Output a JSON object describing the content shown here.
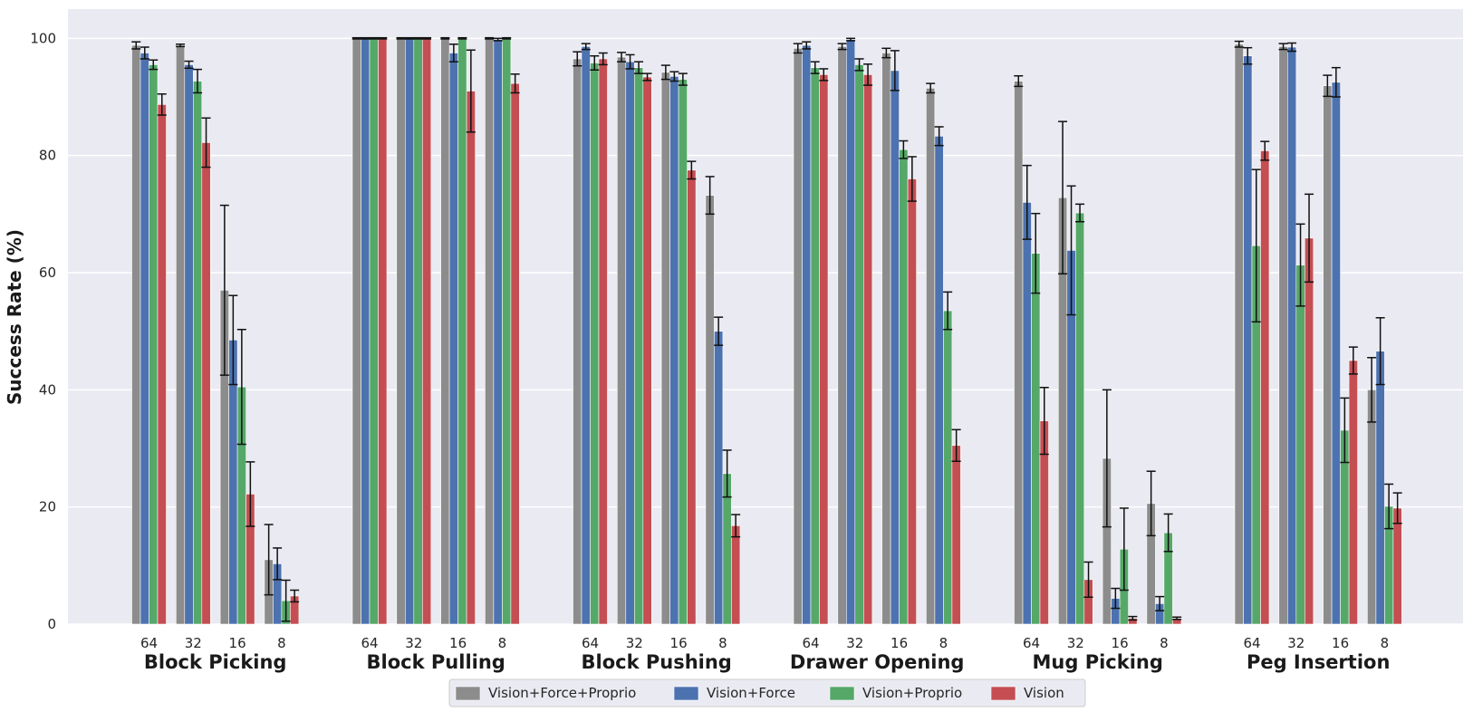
{
  "chart_data": {
    "type": "bar",
    "title": "",
    "ylabel": "Success Rate (%)",
    "xlabel": "",
    "ylim": [
      0,
      105
    ],
    "yticks": [
      0,
      20,
      40,
      60,
      80,
      100
    ],
    "grid": true,
    "legend_position": "bottom-center",
    "groups": [
      "Block Picking",
      "Block Pulling",
      "Block Pushing",
      "Drawer Opening",
      "Mug Picking",
      "Peg Insertion"
    ],
    "subcategories": [
      "64",
      "32",
      "16",
      "8"
    ],
    "series": [
      {
        "name": "Vision+Force+Proprio",
        "color": "#8c8c8c",
        "values": [
          [
            98.8,
            98.8,
            57.0,
            11.0
          ],
          [
            100,
            100,
            100,
            100
          ],
          [
            96.5,
            96.8,
            94.2,
            73.2
          ],
          [
            98.3,
            98.6,
            97.5,
            91.5
          ],
          [
            92.7,
            72.8,
            28.3,
            20.6
          ],
          [
            99.0,
            98.6,
            91.9,
            40.0
          ]
        ],
        "errors": [
          [
            0.6,
            0.2,
            14.5,
            6.0
          ],
          [
            0.1,
            0.1,
            0.1,
            0.1
          ],
          [
            1.2,
            0.8,
            1.2,
            3.2
          ],
          [
            0.8,
            0.5,
            0.8,
            0.8
          ],
          [
            0.9,
            13.0,
            11.7,
            5.5
          ],
          [
            0.5,
            0.5,
            1.8,
            5.5
          ]
        ]
      },
      {
        "name": "Vision+Force",
        "color": "#4c72b0",
        "values": [
          [
            97.5,
            95.5,
            48.5,
            10.3
          ],
          [
            100,
            100,
            97.5,
            99.8
          ],
          [
            98.6,
            96.0,
            93.5,
            50.0
          ],
          [
            98.8,
            99.8,
            94.5,
            83.3
          ],
          [
            72.0,
            63.8,
            4.4,
            3.5
          ],
          [
            97.0,
            98.5,
            92.5,
            46.6
          ]
        ],
        "errors": [
          [
            1.0,
            0.6,
            7.6,
            2.7
          ],
          [
            0.1,
            0.1,
            1.5,
            0.2
          ],
          [
            0.5,
            1.2,
            0.8,
            2.4
          ],
          [
            0.6,
            0.2,
            3.4,
            1.6
          ],
          [
            6.3,
            11.0,
            1.7,
            1.2
          ],
          [
            1.4,
            0.7,
            2.5,
            5.7
          ]
        ]
      },
      {
        "name": "Vision+Proprio",
        "color": "#55a868",
        "values": [
          [
            95.5,
            92.7,
            40.5,
            4.0
          ],
          [
            100,
            100,
            100,
            100
          ],
          [
            95.8,
            95.0,
            93.0,
            25.7
          ],
          [
            95.0,
            95.5,
            81.0,
            53.5
          ],
          [
            63.3,
            70.2,
            12.8,
            15.6
          ],
          [
            64.6,
            61.3,
            33.1,
            20.1
          ]
        ],
        "errors": [
          [
            0.8,
            2.0,
            9.8,
            3.5
          ],
          [
            0.1,
            0.1,
            0.1,
            0.1
          ],
          [
            1.2,
            1.0,
            1.0,
            4.0
          ],
          [
            1.0,
            1.0,
            1.5,
            3.2
          ],
          [
            6.8,
            1.5,
            7.0,
            3.2
          ],
          [
            13.0,
            7.0,
            5.5,
            3.8
          ]
        ]
      },
      {
        "name": "Vision",
        "color": "#c44e52",
        "values": [
          [
            88.7,
            82.2,
            22.2,
            4.8
          ],
          [
            100,
            100,
            91.0,
            92.3
          ],
          [
            96.5,
            93.4,
            77.5,
            16.8
          ],
          [
            93.8,
            93.8,
            76.0,
            30.5
          ],
          [
            34.7,
            7.6,
            1.0,
            1.0
          ],
          [
            80.8,
            65.9,
            45.0,
            19.8
          ]
        ],
        "errors": [
          [
            1.8,
            4.2,
            5.5,
            1.0
          ],
          [
            0.1,
            0.1,
            7.0,
            1.6
          ],
          [
            1.0,
            0.6,
            1.5,
            1.9
          ],
          [
            1.0,
            1.8,
            3.8,
            2.7
          ],
          [
            5.7,
            3.0,
            0.3,
            0.2
          ],
          [
            1.6,
            7.5,
            2.3,
            2.6
          ]
        ]
      }
    ]
  }
}
